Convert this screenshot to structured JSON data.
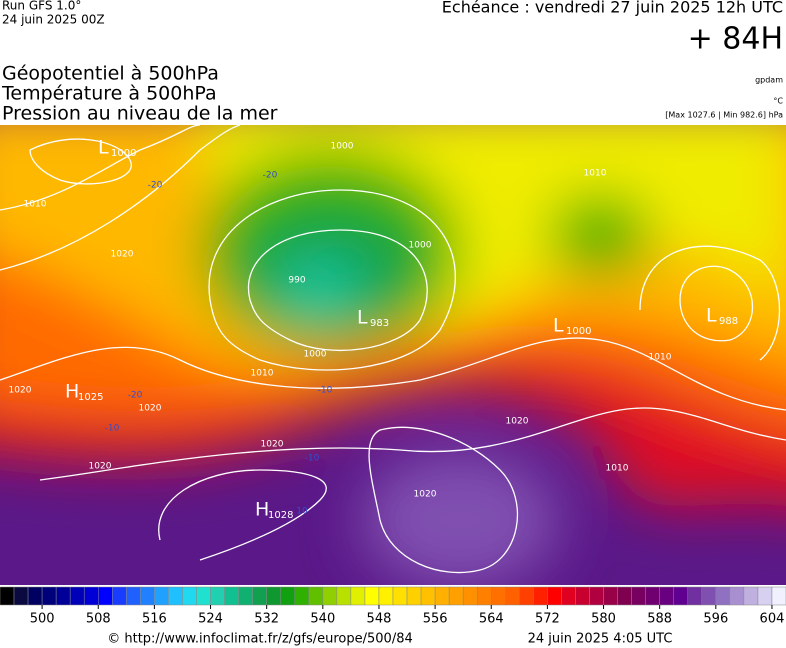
{
  "header": {
    "run": "Run GFS 1.0°",
    "date": "24 juin 2025 00Z",
    "echeance": "Echéance : vendredi 27 juin 2025 12h UTC",
    "lead": "+ 84H"
  },
  "fields": [
    "Géopotentiel à 500hPa",
    "Température à 500hPa",
    "Pression au niveau de la mer"
  ],
  "units": [
    "gpdam",
    "°C",
    "[Max 1027.6 | Min 982.6] hPa"
  ],
  "centers": [
    {
      "letter": "L",
      "value": "1000"
    },
    {
      "letter": "L",
      "value": "983"
    },
    {
      "letter": "L",
      "value": "1000"
    },
    {
      "letter": "L",
      "value": "988"
    },
    {
      "letter": "H",
      "value": "1025"
    },
    {
      "letter": "H",
      "value": "1028"
    }
  ],
  "isobar_labels": [
    "1010",
    "1020",
    "990",
    "1000",
    "1000",
    "1000",
    "1010",
    "1020",
    "1020",
    "1020",
    "1020",
    "1020",
    "1010",
    "1010",
    "1010",
    "1020"
  ],
  "temp_labels": [
    "-20",
    "-20",
    "-20",
    "-10",
    "-10",
    "-10",
    "10"
  ],
  "colorbar": {
    "lim": [
      494,
      606
    ],
    "ticks": [
      500,
      508,
      516,
      524,
      532,
      540,
      548,
      556,
      564,
      572,
      580,
      588,
      596,
      604
    ],
    "colors": [
      "#000000",
      "#0a0a40",
      "#000060",
      "#00007a",
      "#000099",
      "#0000b8",
      "#0000d6",
      "#0000ff",
      "#1a3cff",
      "#2060ff",
      "#2080ff",
      "#20a0ff",
      "#20c0ff",
      "#20d8f0",
      "#20e0d0",
      "#20d0b0",
      "#10c090",
      "#10b070",
      "#10a050",
      "#109830",
      "#10a010",
      "#30b000",
      "#60c000",
      "#90d000",
      "#b8e000",
      "#e0f000",
      "#ffff00",
      "#fff000",
      "#ffe000",
      "#ffd000",
      "#ffc000",
      "#ffb000",
      "#ffa000",
      "#ff9000",
      "#ff8000",
      "#ff7000",
      "#ff6000",
      "#ff4000",
      "#ff2000",
      "#ff0000",
      "#e00020",
      "#c80030",
      "#b00040",
      "#980048",
      "#800050",
      "#780060",
      "#700070",
      "#680080",
      "#600090",
      "#7030a0",
      "#8050b0",
      "#9070c0",
      "#a890d0",
      "#c0b0e0",
      "#d8d0f0",
      "#f0f0ff"
    ]
  },
  "footer": {
    "url": "© http://www.infoclimat.fr/z/gfs/europe/500/84",
    "time": "24 juin 2025  4:05 UTC"
  }
}
